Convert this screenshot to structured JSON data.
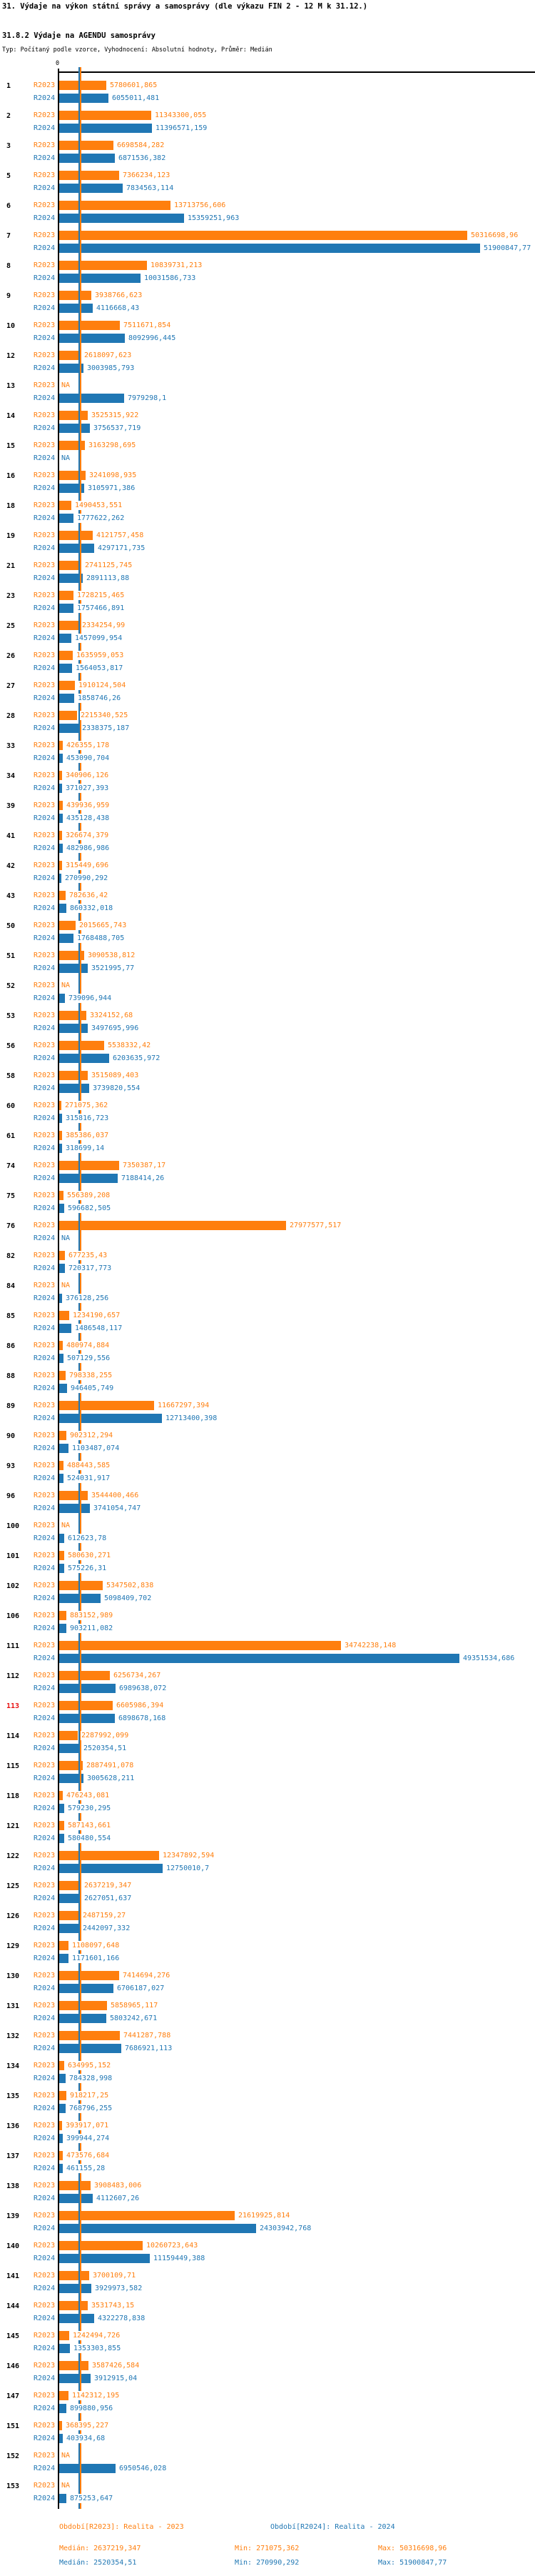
{
  "header": {
    "title": "31. Výdaje na výkon státní správy a samosprávy (dle výkazu FIN 2 - 12 M k 31.12.)",
    "subtitle": "31.8.2 Výdaje na AGENDU samosprávy",
    "type_line": "Typ: Počítaný podle vzorce, Vyhodnocení: Absolutní hodnoty, Průměr: Medián"
  },
  "chart_data": {
    "type": "bar",
    "orientation": "horizontal",
    "axis": {
      "zero_label": "0"
    },
    "na_label": "NA",
    "highlight_id": "113",
    "highlight_color": "#e81313",
    "series": [
      {
        "name": "R2023",
        "color": "#ff7f0e",
        "period_label": "Období[R2023]: Realita - 2023",
        "median": "2637219,347",
        "min": "271075,362",
        "max": "50316698,96"
      },
      {
        "name": "R2024",
        "color": "#2077b4",
        "period_label": "Období[R2024]: Realita - 2024",
        "median": "2520354,51",
        "min": "270990,292",
        "max": "51900847,77"
      }
    ],
    "groups": [
      {
        "id": "1",
        "R2023": "5780601,865",
        "R2024": "6055011,481"
      },
      {
        "id": "2",
        "R2023": "11343300,055",
        "R2024": "11396571,159"
      },
      {
        "id": "3",
        "R2023": "6698584,282",
        "R2024": "6871536,382"
      },
      {
        "id": "5",
        "R2023": "7366234,123",
        "R2024": "7834563,114"
      },
      {
        "id": "6",
        "R2023": "13713756,606",
        "R2024": "15359251,963"
      },
      {
        "id": "7",
        "R2023": "50316698,96",
        "R2024": "51900847,77"
      },
      {
        "id": "8",
        "R2023": "10839731,213",
        "R2024": "10031586,733"
      },
      {
        "id": "9",
        "R2023": "3938766,623",
        "R2024": "4116668,43"
      },
      {
        "id": "10",
        "R2023": "7511671,854",
        "R2024": "8092996,445"
      },
      {
        "id": "12",
        "R2023": "2618097,623",
        "R2024": "3003985,793"
      },
      {
        "id": "13",
        "R2023": "NA",
        "R2024": "7979298,1"
      },
      {
        "id": "14",
        "R2023": "3525315,922",
        "R2024": "3756537,719"
      },
      {
        "id": "15",
        "R2023": "3163298,695",
        "R2024": "NA"
      },
      {
        "id": "16",
        "R2023": "3241098,935",
        "R2024": "3105971,386"
      },
      {
        "id": "18",
        "R2023": "1490453,551",
        "R2024": "1777622,262"
      },
      {
        "id": "19",
        "R2023": "4121757,458",
        "R2024": "4297171,735"
      },
      {
        "id": "21",
        "R2023": "2741125,745",
        "R2024": "2891113,88"
      },
      {
        "id": "23",
        "R2023": "1728215,465",
        "R2024": "1757466,891"
      },
      {
        "id": "25",
        "R2023": "2334254,99",
        "R2024": "1457099,954"
      },
      {
        "id": "26",
        "R2023": "1635959,053",
        "R2024": "1564053,817"
      },
      {
        "id": "27",
        "R2023": "1910124,504",
        "R2024": "1858746,26"
      },
      {
        "id": "28",
        "R2023": "2215340,525",
        "R2024": "2338375,187"
      },
      {
        "id": "33",
        "R2023": "426355,178",
        "R2024": "453090,704"
      },
      {
        "id": "34",
        "R2023": "340906,126",
        "R2024": "371027,393"
      },
      {
        "id": "39",
        "R2023": "439936,959",
        "R2024": "435128,438"
      },
      {
        "id": "41",
        "R2023": "326674,379",
        "R2024": "482986,986"
      },
      {
        "id": "42",
        "R2023": "315449,696",
        "R2024": "270990,292"
      },
      {
        "id": "43",
        "R2023": "782636,42",
        "R2024": "860332,018"
      },
      {
        "id": "50",
        "R2023": "2015665,743",
        "R2024": "1768488,705"
      },
      {
        "id": "51",
        "R2023": "3090538,812",
        "R2024": "3521995,77"
      },
      {
        "id": "52",
        "R2023": "NA",
        "R2024": "739096,944"
      },
      {
        "id": "53",
        "R2023": "3324152,68",
        "R2024": "3497695,996"
      },
      {
        "id": "56",
        "R2023": "5538332,42",
        "R2024": "6203635,972"
      },
      {
        "id": "58",
        "R2023": "3515089,403",
        "R2024": "3739820,554"
      },
      {
        "id": "60",
        "R2023": "271075,362",
        "R2024": "315816,723"
      },
      {
        "id": "61",
        "R2023": "385386,037",
        "R2024": "318699,14"
      },
      {
        "id": "74",
        "R2023": "7350387,17",
        "R2024": "7188414,26"
      },
      {
        "id": "75",
        "R2023": "556389,208",
        "R2024": "596682,505"
      },
      {
        "id": "76",
        "R2023": "27977577,517",
        "R2024": "NA"
      },
      {
        "id": "82",
        "R2023": "677235,43",
        "R2024": "720317,773"
      },
      {
        "id": "84",
        "R2023": "NA",
        "R2024": "376128,256"
      },
      {
        "id": "85",
        "R2023": "1234190,657",
        "R2024": "1486548,117"
      },
      {
        "id": "86",
        "R2023": "480974,884",
        "R2024": "507129,556"
      },
      {
        "id": "88",
        "R2023": "798338,255",
        "R2024": "946405,749"
      },
      {
        "id": "89",
        "R2023": "11667297,394",
        "R2024": "12713400,398"
      },
      {
        "id": "90",
        "R2023": "902312,294",
        "R2024": "1103487,074"
      },
      {
        "id": "93",
        "R2023": "488443,585",
        "R2024": "524031,917"
      },
      {
        "id": "96",
        "R2023": "3544400,466",
        "R2024": "3741054,747"
      },
      {
        "id": "100",
        "R2023": "NA",
        "R2024": "612623,78"
      },
      {
        "id": "101",
        "R2023": "580630,271",
        "R2024": "575226,31"
      },
      {
        "id": "102",
        "R2023": "5347502,838",
        "R2024": "5098409,702"
      },
      {
        "id": "106",
        "R2023": "883152,989",
        "R2024": "903211,082"
      },
      {
        "id": "111",
        "R2023": "34742238,148",
        "R2024": "49351534,686"
      },
      {
        "id": "112",
        "R2023": "6256734,267",
        "R2024": "6989638,072"
      },
      {
        "id": "113",
        "R2023": "6605986,394",
        "R2024": "6898678,168"
      },
      {
        "id": "114",
        "R2023": "2287992,099",
        "R2024": "2520354,51"
      },
      {
        "id": "115",
        "R2023": "2887491,078",
        "R2024": "3005628,211"
      },
      {
        "id": "118",
        "R2023": "476243,081",
        "R2024": "579230,295"
      },
      {
        "id": "121",
        "R2023": "587143,661",
        "R2024": "580480,554"
      },
      {
        "id": "122",
        "R2023": "12347892,594",
        "R2024": "12750010,7"
      },
      {
        "id": "125",
        "R2023": "2637219,347",
        "R2024": "2627051,637"
      },
      {
        "id": "126",
        "R2023": "2487159,27",
        "R2024": "2442097,332"
      },
      {
        "id": "129",
        "R2023": "1108097,648",
        "R2024": "1171601,166"
      },
      {
        "id": "130",
        "R2023": "7414694,276",
        "R2024": "6706187,027"
      },
      {
        "id": "131",
        "R2023": "5858965,117",
        "R2024": "5803242,671"
      },
      {
        "id": "132",
        "R2023": "7441287,788",
        "R2024": "7686921,113"
      },
      {
        "id": "134",
        "R2023": "634995,152",
        "R2024": "784328,998"
      },
      {
        "id": "135",
        "R2023": "918217,25",
        "R2024": "768796,255"
      },
      {
        "id": "136",
        "R2023": "393917,071",
        "R2024": "399944,274"
      },
      {
        "id": "137",
        "R2023": "473576,684",
        "R2024": "461155,28"
      },
      {
        "id": "138",
        "R2023": "3908483,006",
        "R2024": "4112607,26"
      },
      {
        "id": "139",
        "R2023": "21619925,814",
        "R2024": "24303942,768"
      },
      {
        "id": "140",
        "R2023": "10260723,643",
        "R2024": "11159449,388"
      },
      {
        "id": "141",
        "R2023": "3700109,71",
        "R2024": "3929973,582"
      },
      {
        "id": "144",
        "R2023": "3531743,15",
        "R2024": "4322278,838"
      },
      {
        "id": "145",
        "R2023": "1242494,726",
        "R2024": "1353303,855"
      },
      {
        "id": "146",
        "R2023": "3587426,584",
        "R2024": "3912915,04"
      },
      {
        "id": "147",
        "R2023": "1142312,195",
        "R2024": "899880,956"
      },
      {
        "id": "151",
        "R2023": "368395,227",
        "R2024": "403934,68"
      },
      {
        "id": "152",
        "R2023": "NA",
        "R2024": "6950546,028"
      },
      {
        "id": "153",
        "R2023": "NA",
        "R2024": "875253,647"
      }
    ]
  },
  "footer": {
    "r2023": {
      "legend": "Období[R2023]: Realita - 2023",
      "median": "Medián: 2637219,347",
      "min": "Min: 271075,362",
      "max": "Max: 50316698,96"
    },
    "r2024": {
      "legend": "Období[R2024]: Realita - 2024",
      "median": "Medián: 2520354,51",
      "min": "Min: 270990,292",
      "max": "Max: 51900847,77"
    }
  }
}
